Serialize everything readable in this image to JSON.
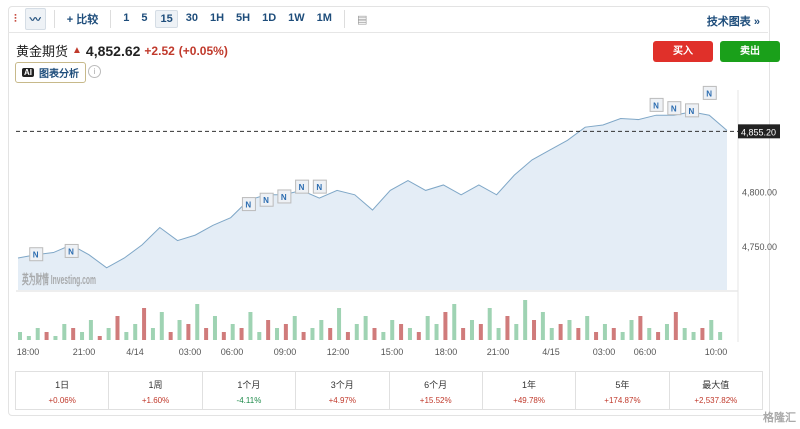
{
  "toolbar": {
    "compare": "比较",
    "intervals": [
      "1",
      "5",
      "15",
      "30",
      "1H",
      "5H",
      "1D",
      "1W",
      "1M"
    ],
    "active": "15",
    "tech_chart": "技术图表 »"
  },
  "instrument": {
    "name": "黄金期货",
    "price": "4,852.62",
    "change": "+2.52",
    "change_pct": "(+0.05%)"
  },
  "ai_button": "图表分析",
  "info": "i",
  "buy": "买入",
  "sell": "卖出",
  "colors": {
    "up": "#c0392b",
    "down": "#1e8a4a",
    "buy": "#e0302a",
    "sell": "#1aa01a"
  },
  "chart_data": {
    "type": "area",
    "y_ticks": [
      "4,750.00",
      "4,800.00"
    ],
    "current_label": "4,855.20",
    "current": 4855.2,
    "ylim": [
      4700,
      4880
    ],
    "x_ticks": [
      "18:00",
      "21:00",
      "4/14",
      "03:00",
      "06:00",
      "09:00",
      "12:00",
      "15:00",
      "18:00",
      "21:00",
      "4/15",
      "03:00",
      "06:00",
      "10:00"
    ],
    "prices": [
      4739,
      4742,
      4744,
      4751,
      4742,
      4730,
      4739,
      4751,
      4767,
      4755,
      4760,
      4769,
      4776,
      4792,
      4797,
      4797,
      4801,
      4794,
      4801,
      4797,
      4783,
      4801,
      4810,
      4801,
      4806,
      4797,
      4806,
      4797,
      4815,
      4829,
      4838,
      4847,
      4859,
      4861,
      4867,
      4866,
      4870,
      4870,
      4873,
      4870,
      4856
    ],
    "news": [
      [
        3,
        4745
      ],
      [
        1,
        4742
      ],
      [
        13,
        4788
      ],
      [
        14,
        4792
      ],
      [
        15,
        4795
      ],
      [
        16,
        4804
      ],
      [
        17,
        4804
      ],
      [
        36,
        4879
      ],
      [
        37,
        4876
      ],
      [
        38,
        4874
      ],
      [
        39,
        4890
      ]
    ],
    "news_label": "N",
    "volume": [
      2,
      1,
      3,
      -2,
      1,
      4,
      -3,
      2,
      5,
      -1,
      3,
      -6,
      2,
      4,
      -8,
      3,
      7,
      -2,
      5,
      -4,
      9,
      -3,
      6,
      -2,
      4,
      -3,
      7,
      2,
      -5,
      3,
      -4,
      6,
      -2,
      3,
      5,
      -3,
      8,
      -2,
      4,
      6,
      -3,
      2,
      5,
      -4,
      3,
      -2,
      6,
      4,
      -7,
      9,
      -3,
      5,
      -4,
      8,
      3,
      -6,
      4,
      10,
      -5,
      7,
      3,
      -4,
      5,
      -3,
      6,
      -2,
      4,
      -3,
      2,
      5,
      -6,
      3,
      -2,
      4,
      -7,
      3,
      2,
      -3,
      5,
      2
    ]
  },
  "watermark_text": "英为财情 Investing.com",
  "performance": [
    {
      "label": "1日",
      "value": "+0.06%"
    },
    {
      "label": "1周",
      "value": "+1.60%"
    },
    {
      "label": "1个月",
      "value": "-4.11%"
    },
    {
      "label": "3个月",
      "value": "+4.97%"
    },
    {
      "label": "6个月",
      "value": "+15.52%"
    },
    {
      "label": "1年",
      "value": "+49.78%"
    },
    {
      "label": "5年",
      "value": "+174.87%"
    },
    {
      "label": "最大值",
      "value": "+2,537.82%"
    }
  ],
  "corner_watermark": "格隆汇"
}
